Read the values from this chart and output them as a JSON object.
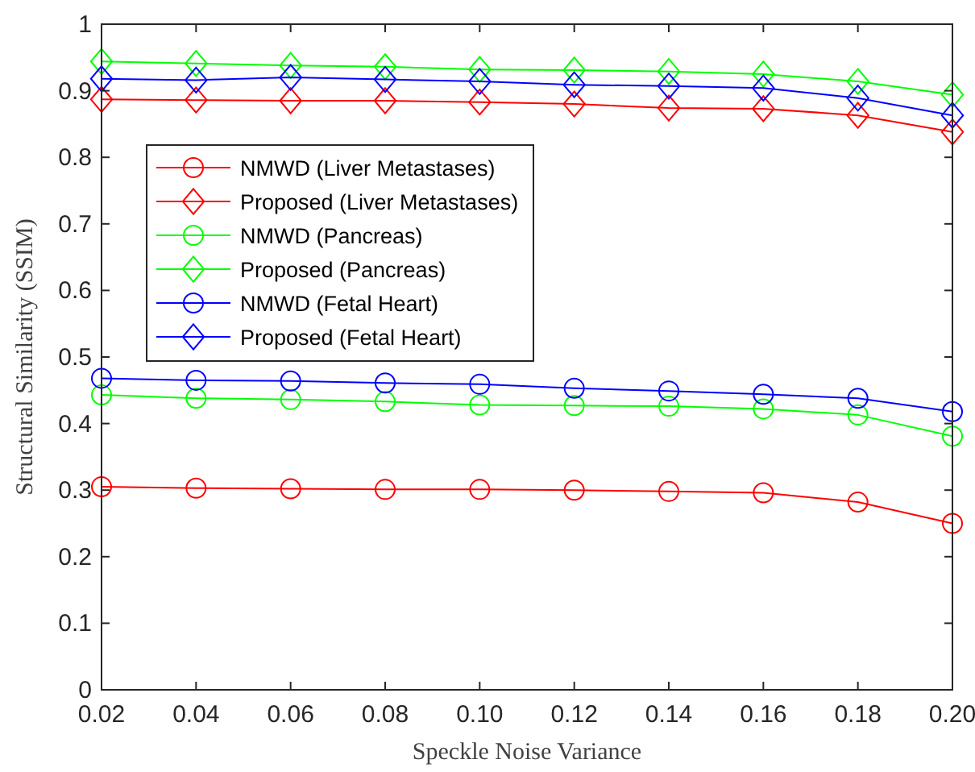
{
  "chart_data": {
    "type": "line",
    "xlabel": "Speckle Noise Variance",
    "ylabel": "Structural Similarity (SSIM)",
    "x": [
      0.02,
      0.04,
      0.06,
      0.08,
      0.1,
      0.12,
      0.14,
      0.16,
      0.18,
      0.2
    ],
    "xlim": [
      0.02,
      0.2
    ],
    "xticks": [
      0.02,
      0.04,
      0.06,
      0.08,
      {
        "value": 0.1,
        "label": "0.10"
      },
      0.12,
      0.14,
      0.16,
      0.18,
      {
        "value": 0.2,
        "label": "0.20"
      }
    ],
    "ylim": [
      0,
      1
    ],
    "yticks": [
      0,
      0.1,
      0.2,
      0.3,
      0.4,
      0.5,
      0.6,
      0.7,
      0.8,
      0.9,
      1
    ],
    "grid": false,
    "legend": "left",
    "series": [
      {
        "name": "NMWD (Liver Metastases)",
        "color": "#ff0000",
        "marker": "circle",
        "values": [
          0.305,
          0.303,
          0.302,
          0.301,
          0.301,
          0.3,
          0.298,
          0.296,
          0.282,
          0.25
        ]
      },
      {
        "name": "Proposed (Liver Metastases)",
        "color": "#ff0000",
        "marker": "diamond",
        "values": [
          0.887,
          0.886,
          0.885,
          0.885,
          0.883,
          0.88,
          0.874,
          0.873,
          0.863,
          0.838
        ]
      },
      {
        "name": "NMWD (Pancreas)",
        "color": "#00ff00",
        "marker": "circle",
        "values": [
          0.443,
          0.438,
          0.436,
          0.433,
          0.428,
          0.427,
          0.426,
          0.422,
          0.413,
          0.381
        ]
      },
      {
        "name": "Proposed (Pancreas)",
        "color": "#00ff00",
        "marker": "diamond",
        "values": [
          0.944,
          0.941,
          0.938,
          0.936,
          0.932,
          0.931,
          0.929,
          0.925,
          0.914,
          0.894
        ]
      },
      {
        "name": "NMWD (Fetal Heart)",
        "color": "#0000ff",
        "marker": "circle",
        "values": [
          0.468,
          0.465,
          0.464,
          0.461,
          0.459,
          0.453,
          0.449,
          0.444,
          0.438,
          0.418
        ]
      },
      {
        "name": "Proposed (Fetal Heart)",
        "color": "#0000ff",
        "marker": "diamond",
        "values": [
          0.918,
          0.916,
          0.92,
          0.917,
          0.914,
          0.909,
          0.907,
          0.904,
          0.889,
          0.863
        ]
      }
    ]
  }
}
